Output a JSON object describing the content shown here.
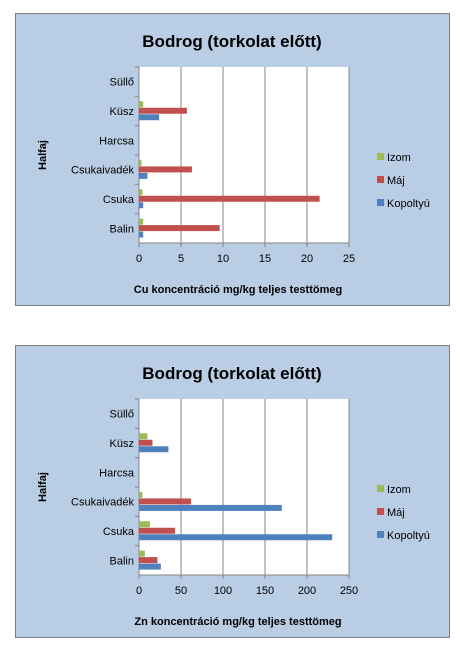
{
  "chart_data": [
    {
      "type": "bar",
      "orientation": "horizontal",
      "title": "Bodrog (torkolat előtt)",
      "xlabel": "Cu koncentráció mg/kg teljes testtömeg",
      "ylabel": "Halfaj",
      "categories": [
        "Balin",
        "Csuka",
        "Csukaivadék",
        "Harcsa",
        "Küsz",
        "Süllő"
      ],
      "xlim": [
        0,
        25
      ],
      "xticks": [
        0,
        5,
        10,
        15,
        20,
        25
      ],
      "grid": true,
      "legend_position": "right",
      "series": [
        {
          "name": "Kopoltyú",
          "color": "#4f81bd",
          "values": [
            0.5,
            0.5,
            1.0,
            null,
            2.4,
            null
          ]
        },
        {
          "name": "Máj",
          "color": "#c0504d",
          "values": [
            9.6,
            21.5,
            6.3,
            null,
            5.7,
            null
          ]
        },
        {
          "name": "Izom",
          "color": "#9bbb59",
          "values": [
            0.5,
            0.4,
            0.3,
            null,
            0.5,
            null
          ]
        }
      ]
    },
    {
      "type": "bar",
      "orientation": "horizontal",
      "title": "Bodrog (torkolat előtt)",
      "xlabel": "Zn koncentráció mg/kg teljes testtömeg",
      "ylabel": "Halfaj",
      "categories": [
        "Balin",
        "Csuka",
        "Csukaivadék",
        "Harcsa",
        "Küsz",
        "Süllő"
      ],
      "xlim": [
        0,
        250
      ],
      "xticks": [
        0,
        50,
        100,
        150,
        200,
        250
      ],
      "grid": true,
      "legend_position": "right",
      "series": [
        {
          "name": "Kopoltyú",
          "color": "#4f81bd",
          "values": [
            26,
            230,
            170,
            null,
            35,
            null
          ]
        },
        {
          "name": "Máj",
          "color": "#c0504d",
          "values": [
            22,
            43,
            62,
            null,
            16,
            null
          ]
        },
        {
          "name": "Izom",
          "color": "#9bbb59",
          "values": [
            7,
            13,
            4,
            null,
            10,
            null
          ]
        }
      ]
    }
  ]
}
